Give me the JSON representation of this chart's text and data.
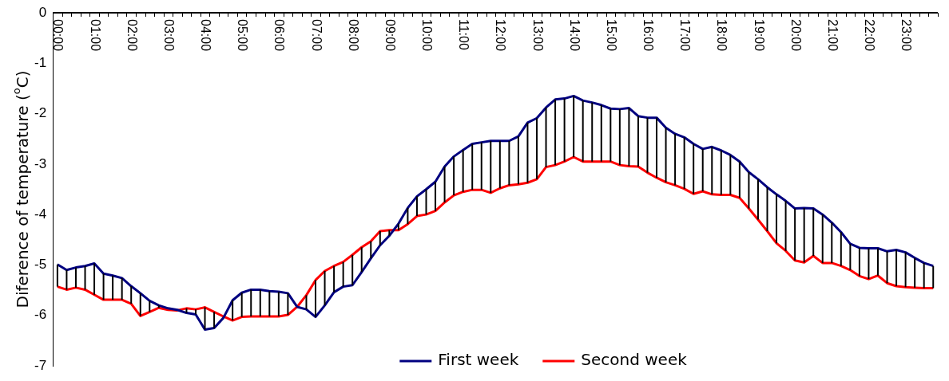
{
  "chart_data": {
    "type": "line",
    "ylabel": "Diference of temperature ($^{o}$C)",
    "categories": [
      "00:00",
      null,
      null,
      null,
      "01:00",
      null,
      null,
      null,
      "02:00",
      null,
      null,
      null,
      "03:00",
      null,
      null,
      null,
      "04:00",
      null,
      null,
      null,
      "05:00",
      null,
      null,
      null,
      "06:00",
      null,
      null,
      null,
      "07:00",
      null,
      null,
      null,
      "08:00",
      null,
      null,
      null,
      "09:00",
      null,
      null,
      null,
      "10:00",
      null,
      null,
      null,
      "11:00",
      null,
      null,
      null,
      "12:00",
      null,
      null,
      null,
      "13:00",
      null,
      null,
      null,
      "14:00",
      null,
      null,
      null,
      "15:00",
      null,
      null,
      null,
      "16:00",
      null,
      null,
      null,
      "17:00",
      null,
      null,
      null,
      "18:00",
      null,
      null,
      null,
      "19:00",
      null,
      null,
      null,
      "20:00",
      null,
      null,
      null,
      "21:00",
      null,
      null,
      null,
      "22:00",
      null,
      null,
      null,
      "23:00",
      null,
      null,
      null
    ],
    "series": [
      {
        "name": "First week",
        "color": "#000080",
        "values": [
          -4.99,
          -5.1,
          -5.05,
          -5.02,
          -4.97,
          -5.17,
          -5.21,
          -5.26,
          -5.42,
          -5.56,
          -5.71,
          -5.8,
          -5.86,
          -5.89,
          -5.95,
          -5.98,
          -6.28,
          -6.25,
          -6.05,
          -5.7,
          -5.55,
          -5.49,
          -5.49,
          -5.52,
          -5.53,
          -5.56,
          -5.83,
          -5.88,
          -6.03,
          -5.8,
          -5.54,
          -5.43,
          -5.4,
          -5.14,
          -4.87,
          -4.61,
          -4.42,
          -4.18,
          -3.87,
          -3.64,
          -3.5,
          -3.35,
          -3.05,
          -2.85,
          -2.72,
          -2.6,
          -2.57,
          -2.54,
          -2.54,
          -2.54,
          -2.45,
          -2.18,
          -2.09,
          -1.88,
          -1.72,
          -1.7,
          -1.65,
          -1.74,
          -1.78,
          -1.83,
          -1.9,
          -1.91,
          -1.89,
          -2.05,
          -2.08,
          -2.08,
          -2.28,
          -2.4,
          -2.47,
          -2.6,
          -2.7,
          -2.66,
          -2.73,
          -2.82,
          -2.95,
          -3.16,
          -3.3,
          -3.46,
          -3.6,
          -3.73,
          -3.88,
          -3.87,
          -3.88,
          -4.0,
          -4.16,
          -4.35,
          -4.58,
          -4.66,
          -4.67,
          -4.67,
          -4.73,
          -4.7,
          -4.75,
          -4.86,
          -4.96,
          -5.02
        ],
        "errors": [
          [
            -5.43,
            -4.99
          ],
          [
            -5.49,
            -5.1
          ],
          [
            -5.45,
            -5.05
          ],
          [
            -5.49,
            -5.02
          ],
          [
            -5.59,
            -4.97
          ],
          [
            -5.69,
            -5.17
          ],
          [
            -5.69,
            -5.21
          ],
          [
            -5.69,
            -5.26
          ],
          [
            -5.77,
            -5.42
          ],
          [
            -6.01,
            -5.56
          ],
          [
            -5.93,
            -5.71
          ],
          [
            -5.85,
            -5.8
          ],
          null,
          null,
          [
            -5.95,
            -5.86
          ],
          [
            -5.98,
            -5.88
          ],
          [
            -6.28,
            -5.84
          ],
          [
            -6.25,
            -5.93
          ],
          null,
          [
            -6.1,
            -5.7
          ],
          [
            -6.03,
            -5.55
          ],
          [
            -6.02,
            -5.49
          ],
          [
            -6.02,
            -5.49
          ],
          [
            -6.02,
            -5.52
          ],
          [
            -6.02,
            -5.53
          ],
          [
            -5.99,
            -5.56
          ],
          null,
          [
            -5.88,
            -5.6
          ],
          [
            -6.03,
            -5.3
          ],
          [
            -5.8,
            -5.12
          ],
          [
            -5.54,
            -5.02
          ],
          [
            -5.43,
            -4.94
          ],
          [
            -5.4,
            -4.8
          ],
          [
            -5.14,
            -4.65
          ],
          [
            -4.87,
            -4.53
          ],
          [
            -4.61,
            -4.33
          ],
          [
            -4.42,
            -4.31
          ],
          [
            -4.31,
            -4.18
          ],
          [
            -4.19,
            -3.87
          ],
          [
            -4.03,
            -3.64
          ],
          [
            -4.0,
            -3.5
          ],
          [
            -3.93,
            -3.35
          ],
          [
            -3.76,
            -3.05
          ],
          [
            -3.62,
            -2.85
          ],
          [
            -3.55,
            -2.72
          ],
          [
            -3.51,
            -2.6
          ],
          [
            -3.51,
            -2.57
          ],
          [
            -3.57,
            -2.54
          ],
          [
            -3.48,
            -2.54
          ],
          [
            -3.42,
            -2.54
          ],
          [
            -3.4,
            -2.45
          ],
          [
            -3.37,
            -2.18
          ],
          [
            -3.3,
            -2.09
          ],
          [
            -3.06,
            -1.88
          ],
          [
            -3.02,
            -1.72
          ],
          [
            -2.95,
            -1.7
          ],
          [
            -2.86,
            -1.65
          ],
          [
            -2.95,
            -1.74
          ],
          [
            -2.95,
            -1.78
          ],
          [
            -2.95,
            -1.83
          ],
          [
            -2.95,
            -1.9
          ],
          [
            -3.02,
            -1.91
          ],
          [
            -3.04,
            -1.89
          ],
          [
            -3.05,
            -2.05
          ],
          [
            -3.17,
            -2.08
          ],
          [
            -3.27,
            -2.08
          ],
          [
            -3.36,
            -2.28
          ],
          [
            -3.42,
            -2.4
          ],
          [
            -3.49,
            -2.47
          ],
          [
            -3.59,
            -2.6
          ],
          [
            -3.54,
            -2.7
          ],
          [
            -3.6,
            -2.66
          ],
          [
            -3.61,
            -2.73
          ],
          [
            -3.61,
            -2.82
          ],
          [
            -3.67,
            -2.95
          ],
          [
            -3.88,
            -3.16
          ],
          [
            -4.1,
            -3.3
          ],
          [
            -4.33,
            -3.46
          ],
          [
            -4.57,
            -3.6
          ],
          [
            -4.72,
            -3.73
          ],
          [
            -4.91,
            -3.88
          ],
          [
            -4.95,
            -3.87
          ],
          [
            -4.82,
            -3.88
          ],
          [
            -4.96,
            -4.0
          ],
          [
            -4.96,
            -4.16
          ],
          [
            -5.02,
            -4.35
          ],
          [
            -5.1,
            -4.58
          ],
          [
            -5.22,
            -4.66
          ],
          [
            -5.28,
            -4.67
          ],
          [
            -5.21,
            -4.67
          ],
          [
            -5.36,
            -4.73
          ],
          [
            -5.42,
            -4.7
          ],
          [
            -5.44,
            -4.75
          ],
          [
            -5.45,
            -4.86
          ],
          [
            -5.46,
            -4.96
          ],
          [
            -5.46,
            -5.02
          ]
        ]
      },
      {
        "name": "Second week",
        "color": "#ff0000",
        "values": [
          -5.43,
          -5.49,
          -5.45,
          -5.49,
          -5.59,
          -5.69,
          -5.69,
          -5.69,
          -5.77,
          -6.01,
          -5.93,
          -5.85,
          -5.89,
          -5.9,
          -5.86,
          -5.88,
          -5.84,
          -5.93,
          -6.02,
          -6.1,
          -6.03,
          -6.02,
          -6.02,
          -6.02,
          -6.02,
          -5.99,
          -5.83,
          -5.6,
          -5.3,
          -5.12,
          -5.02,
          -4.94,
          -4.8,
          -4.65,
          -4.53,
          -4.33,
          -4.31,
          -4.31,
          -4.19,
          -4.03,
          -4.0,
          -3.93,
          -3.76,
          -3.62,
          -3.55,
          -3.51,
          -3.51,
          -3.57,
          -3.48,
          -3.42,
          -3.4,
          -3.37,
          -3.3,
          -3.06,
          -3.02,
          -2.95,
          -2.86,
          -2.95,
          -2.95,
          -2.95,
          -2.95,
          -3.02,
          -3.04,
          -3.05,
          -3.17,
          -3.27,
          -3.36,
          -3.42,
          -3.49,
          -3.59,
          -3.54,
          -3.6,
          -3.61,
          -3.61,
          -3.67,
          -3.88,
          -4.1,
          -4.33,
          -4.57,
          -4.72,
          -4.91,
          -4.95,
          -4.82,
          -4.96,
          -4.96,
          -5.02,
          -5.1,
          -5.22,
          -5.28,
          -5.21,
          -5.36,
          -5.42,
          -5.44,
          -5.45,
          -5.46,
          -5.46
        ]
      }
    ],
    "ylim": [
      -7,
      0
    ],
    "yticks": [
      -7,
      -6,
      -5,
      -4,
      -3,
      -2,
      -1,
      0
    ],
    "legend": "bottom"
  }
}
